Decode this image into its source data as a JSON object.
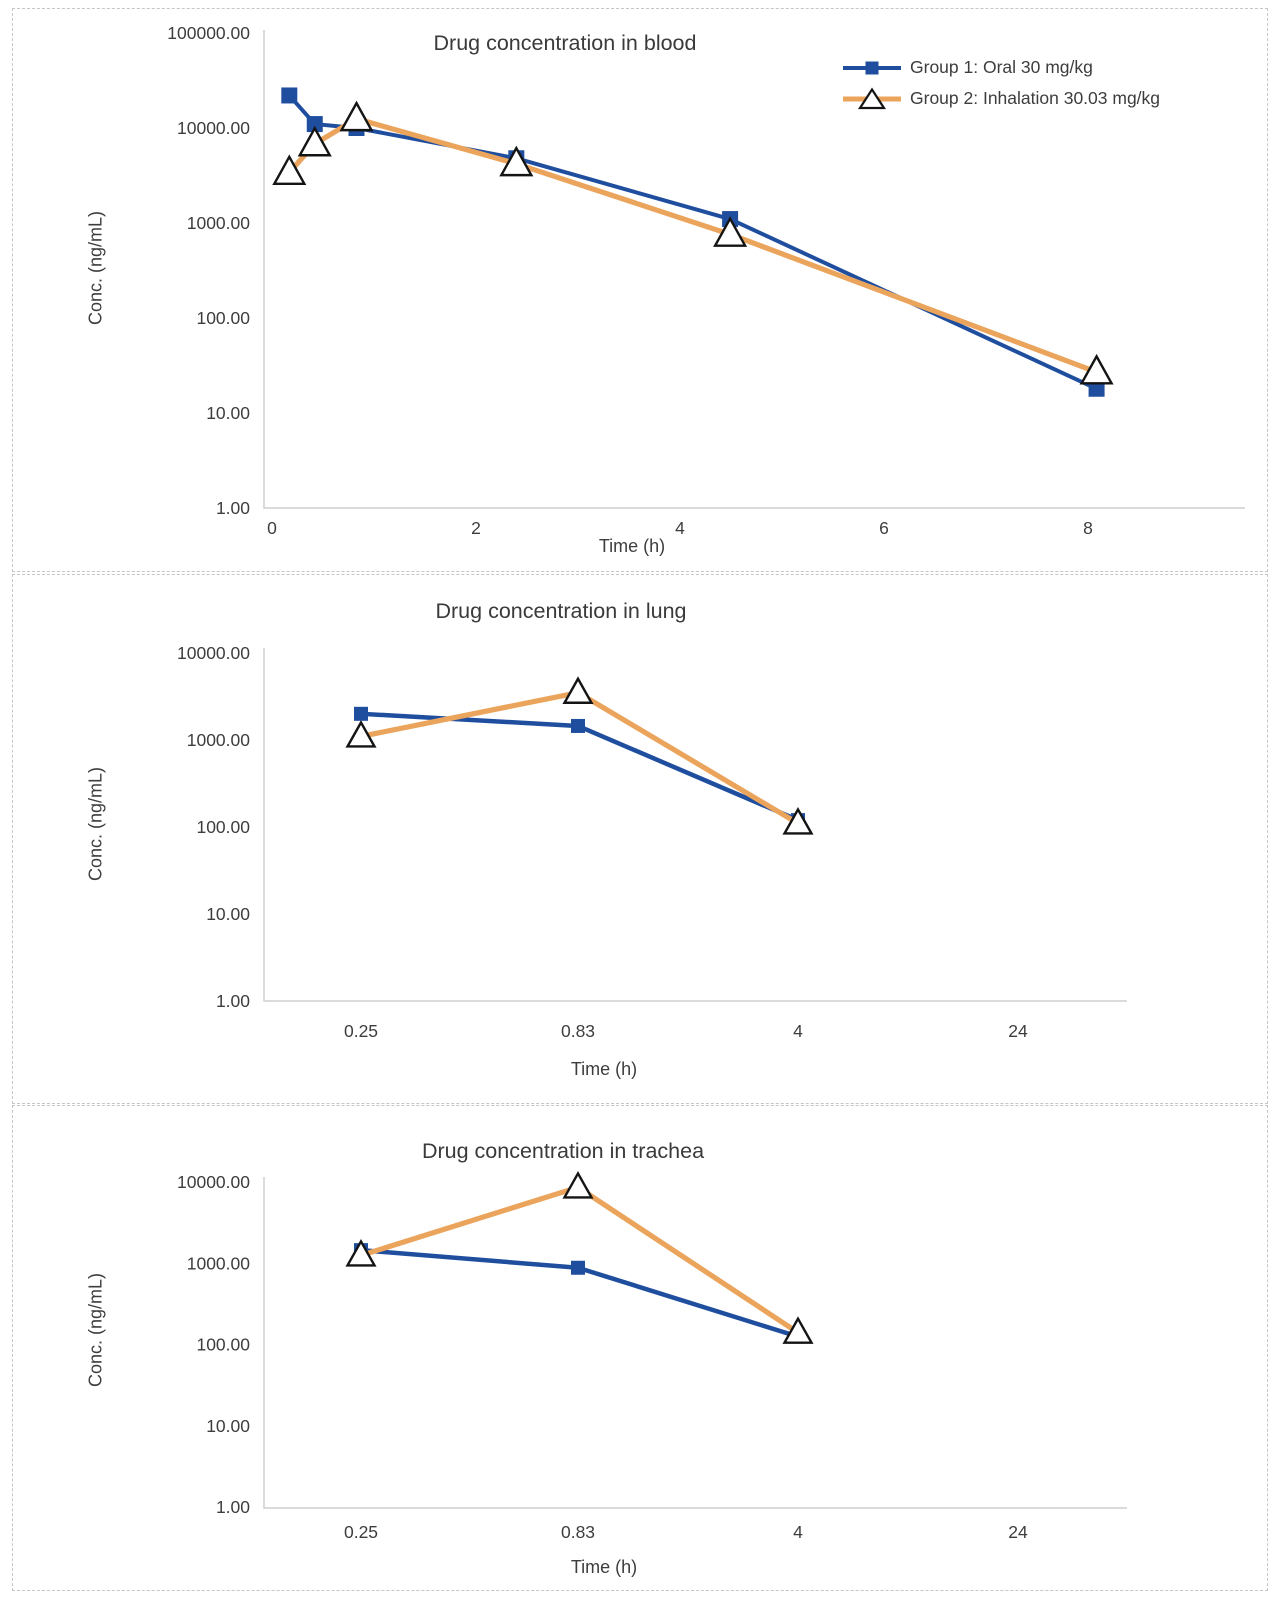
{
  "colors": {
    "group1_blue": "#1F4E9F",
    "group2_orange": "#EBA45B",
    "marker_outline": "#141414",
    "axis_line": "#cfcfcf",
    "text": "#3d3d3d"
  },
  "legend": {
    "items": [
      {
        "label": "Group 1: Oral 30 mg/kg",
        "marker": "square"
      },
      {
        "label": "Group 2: Inhalation 30.03 mg/kg",
        "marker": "triangle"
      }
    ]
  },
  "chart_data": [
    {
      "type": "line",
      "title": "Drug concentration in blood",
      "xlabel": "Time (h)",
      "ylabel": "Conc. (ng/mL)",
      "y_scale": "log",
      "ylim": [
        1,
        100000
      ],
      "grid": false,
      "legend_position": "top-right",
      "y_tick_labels": [
        "100000.00",
        "10000.00",
        "1000.00",
        "100.00",
        "10.00",
        "1.00"
      ],
      "x_tick_labels": [
        "0",
        "2",
        "4",
        "6",
        "8"
      ],
      "x_ticks": [
        0,
        2,
        4,
        6,
        8
      ],
      "series": [
        {
          "name": "Group 1: Oral 30 mg/kg",
          "marker": "square",
          "x": [
            0.17,
            0.42,
            0.83,
            2.4,
            4.5,
            8.1
          ],
          "y": [
            22000,
            11000,
            10000,
            4800,
            1100,
            18
          ]
        },
        {
          "name": "Group 2: Inhalation 30.03 mg/kg",
          "marker": "triangle",
          "x": [
            0.17,
            0.42,
            0.83,
            2.4,
            4.5,
            8.1
          ],
          "y": [
            3400,
            6800,
            12500,
            4200,
            760,
            27
          ]
        }
      ]
    },
    {
      "type": "line",
      "title": "Drug concentration in lung",
      "xlabel": "Time (h)",
      "ylabel": "Conc. (ng/mL)",
      "y_scale": "log",
      "ylim": [
        1,
        10000
      ],
      "grid": false,
      "y_tick_labels": [
        "10000.00",
        "1000.00",
        "100.00",
        "10.00",
        "1.00"
      ],
      "categories": [
        "0.25",
        "0.83",
        "4",
        "24"
      ],
      "series": [
        {
          "name": "Group 1: Oral 30 mg/kg",
          "marker": "square",
          "values": [
            2000,
            1450,
            120,
            null
          ]
        },
        {
          "name": "Group 2: Inhalation 30.03 mg/kg",
          "marker": "triangle",
          "values": [
            1100,
            3500,
            110,
            null
          ]
        }
      ]
    },
    {
      "type": "line",
      "title": "Drug concentration in trachea",
      "xlabel": "Time (h)",
      "ylabel": "Conc. (ng/mL)",
      "y_scale": "log",
      "ylim": [
        1,
        10000
      ],
      "grid": false,
      "y_tick_labels": [
        "10000.00",
        "1000.00",
        "100.00",
        "10.00",
        "1.00"
      ],
      "categories": [
        "0.25",
        "0.83",
        "4",
        "24"
      ],
      "series": [
        {
          "name": "Group 1: Oral 30 mg/kg",
          "marker": "square",
          "values": [
            1450,
            880,
            125,
            null
          ]
        },
        {
          "name": "Group 2: Inhalation 30.03 mg/kg",
          "marker": "triangle",
          "values": [
            1250,
            8600,
            140,
            null
          ]
        }
      ]
    }
  ]
}
